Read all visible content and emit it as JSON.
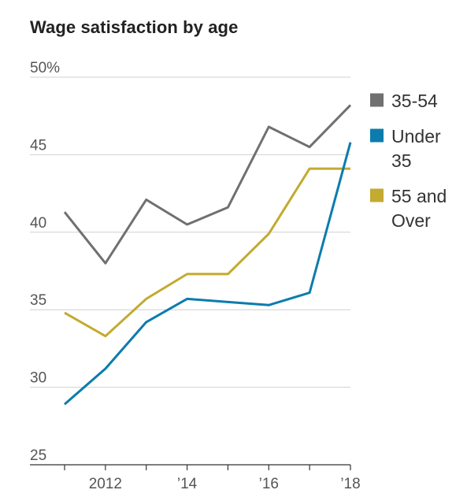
{
  "chart_data": {
    "type": "line",
    "title": "Wage satisfaction by age",
    "xlabel": "",
    "ylabel": "",
    "x": [
      2011,
      2012,
      2013,
      2014,
      2015,
      2016,
      2017,
      2018
    ],
    "xlim": [
      2011,
      2018
    ],
    "ylim": [
      25,
      50
    ],
    "y_ticks": [
      {
        "value": 50,
        "label": "50%"
      },
      {
        "value": 45,
        "label": "45"
      },
      {
        "value": 40,
        "label": "40"
      },
      {
        "value": 35,
        "label": "35"
      },
      {
        "value": 30,
        "label": "30"
      },
      {
        "value": 25,
        "label": "25"
      }
    ],
    "x_ticks": [
      {
        "value": 2011,
        "label": ""
      },
      {
        "value": 2012,
        "label": "2012"
      },
      {
        "value": 2013,
        "label": ""
      },
      {
        "value": 2014,
        "label": "’14"
      },
      {
        "value": 2015,
        "label": ""
      },
      {
        "value": 2016,
        "label": "’16"
      },
      {
        "value": 2017,
        "label": ""
      },
      {
        "value": 2018,
        "label": "’18"
      }
    ],
    "grid": "horizontal",
    "legend_position": "right",
    "series": [
      {
        "name": "35-54",
        "color": "#707070",
        "values": [
          41.3,
          38.0,
          42.1,
          40.5,
          41.6,
          46.8,
          45.5,
          48.2
        ]
      },
      {
        "name": "Under 35",
        "color": "#0b7cad",
        "values": [
          28.9,
          31.2,
          34.2,
          35.7,
          35.5,
          35.3,
          36.1,
          45.8
        ]
      },
      {
        "name": "55 and Over",
        "color": "#c3aa30",
        "values": [
          34.8,
          33.3,
          35.7,
          37.3,
          37.3,
          39.9,
          44.1,
          44.1
        ]
      }
    ],
    "legend": [
      {
        "lines": [
          "35-54"
        ],
        "color": "#707070"
      },
      {
        "lines": [
          "Under",
          "35"
        ],
        "color": "#0b7cad"
      },
      {
        "lines": [
          "55 and",
          "Over"
        ],
        "color": "#c3aa30"
      }
    ]
  }
}
